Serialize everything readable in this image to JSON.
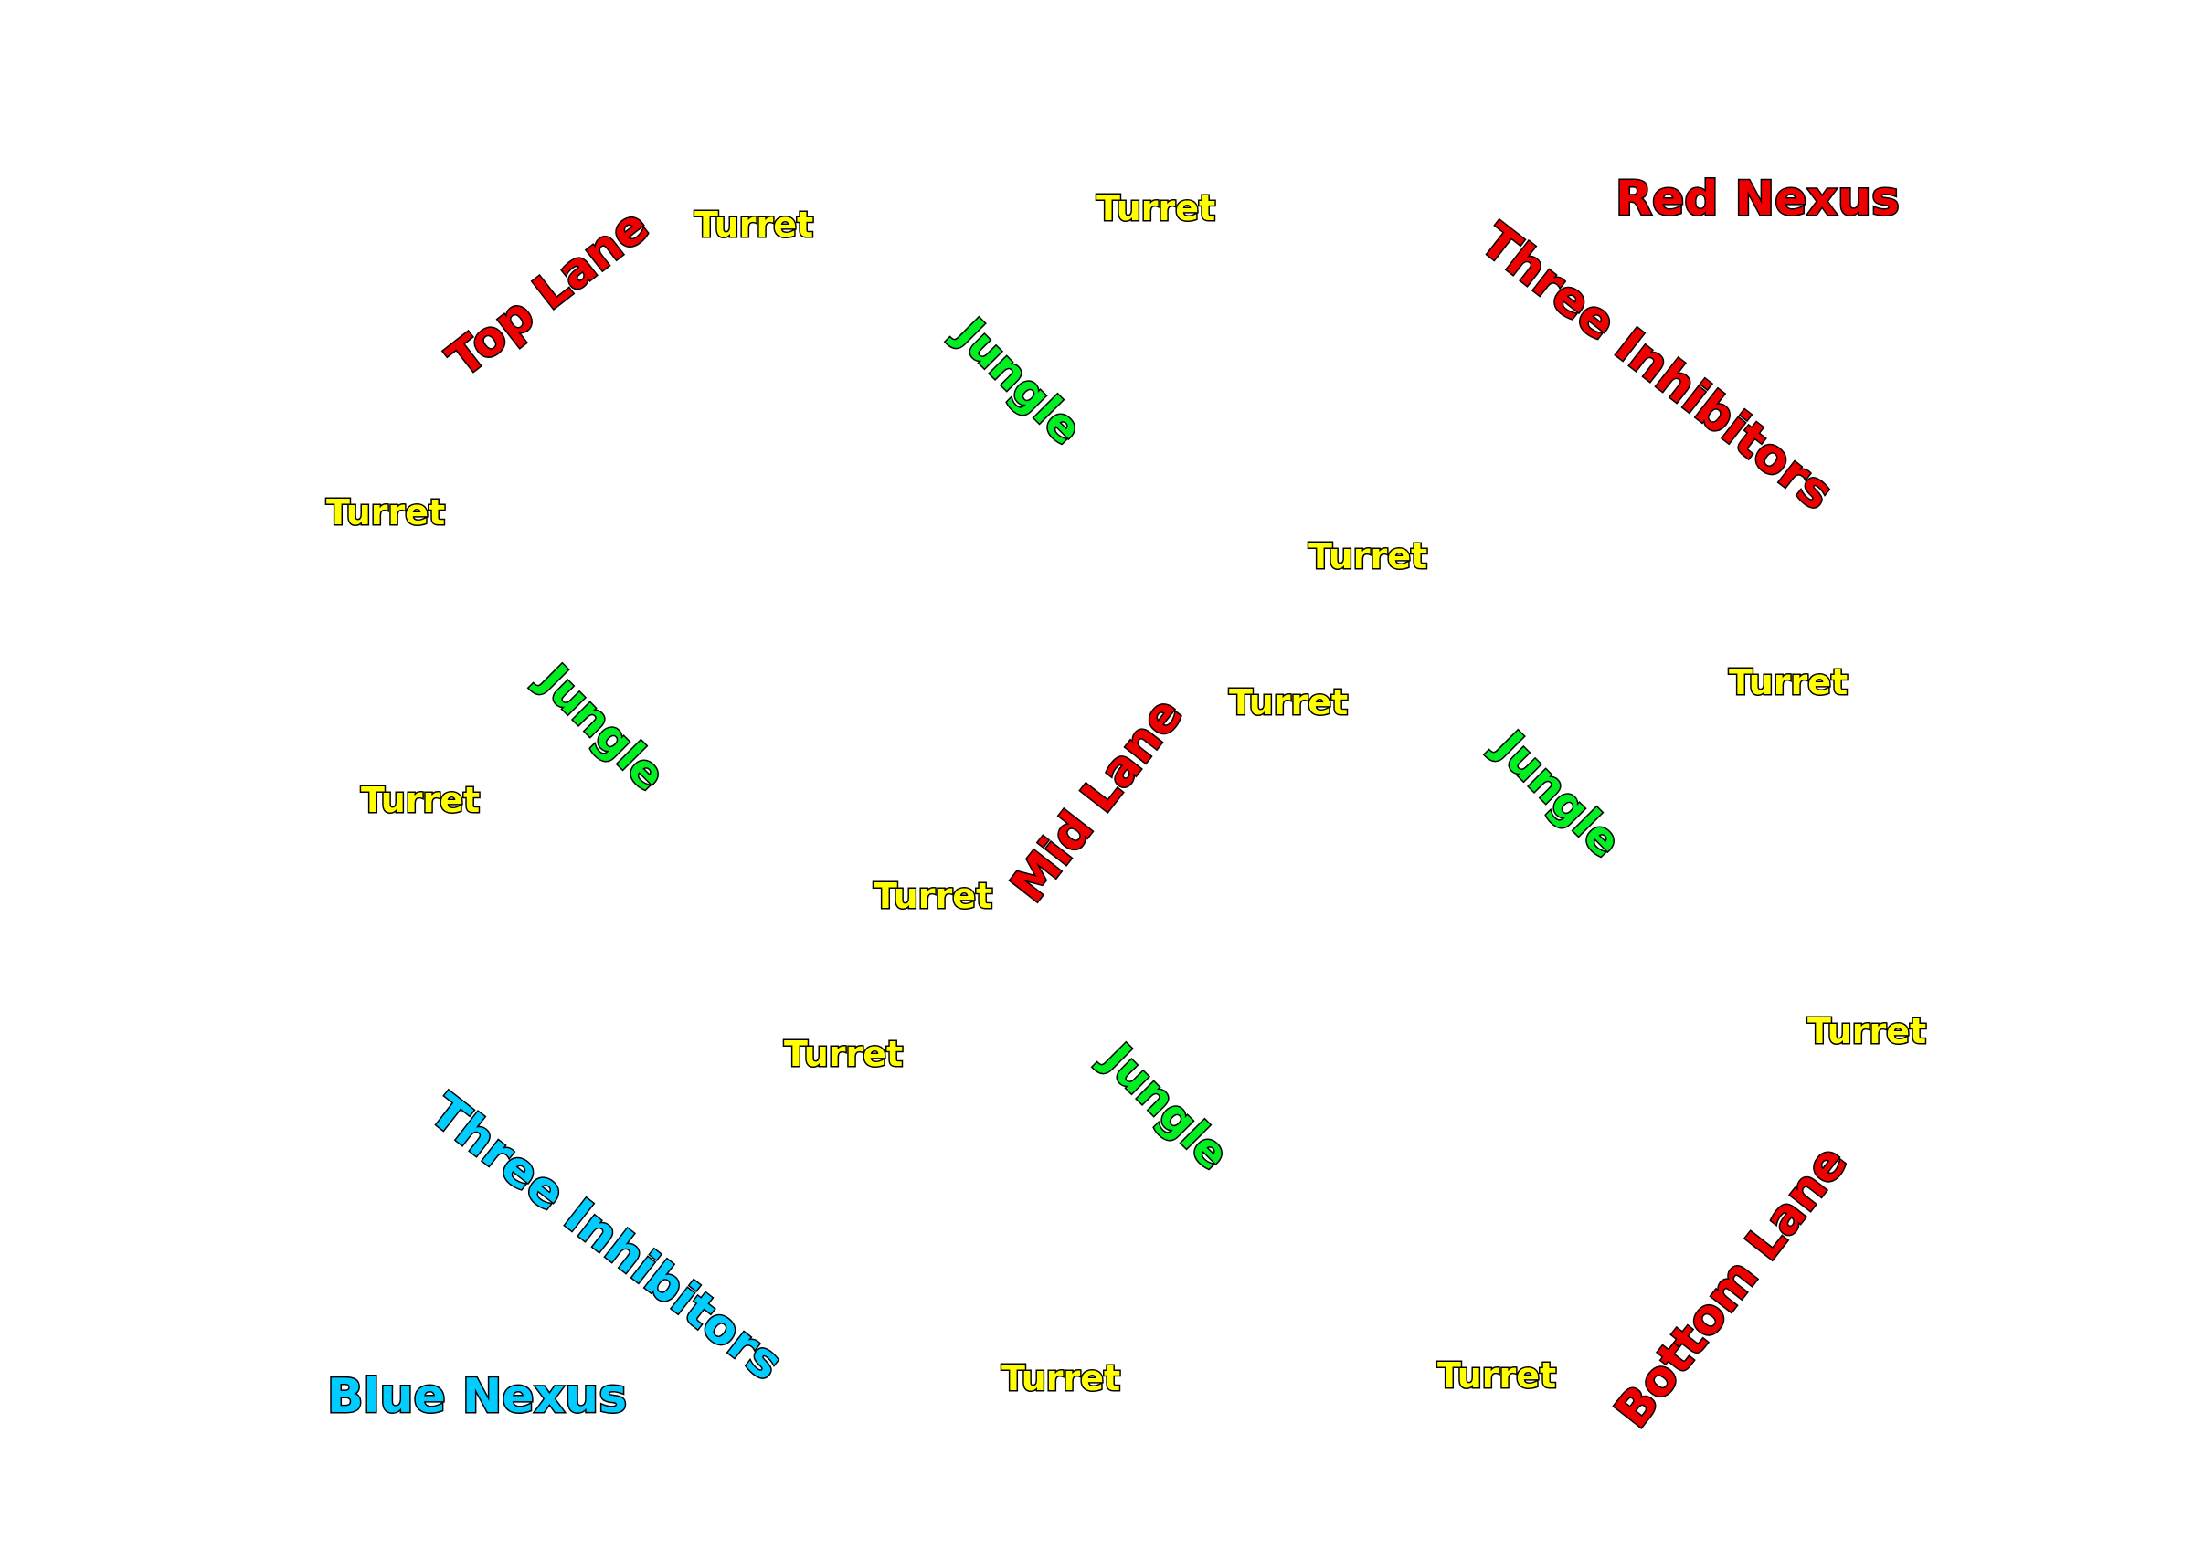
{
  "colors": {
    "turret": "#ffff00",
    "jungle": "#00ee22",
    "red_team": "#ee0000",
    "blue_team": "#00ccff",
    "outline": "#000000",
    "background": "#ffffff"
  },
  "labels": {
    "red_nexus": "Red Nexus",
    "blue_nexus": "Blue Nexus",
    "red_inhibitors": "Three Inhibitors",
    "blue_inhibitors": "Three Inhibitors",
    "top_lane": "Top Lane",
    "mid_lane": "Mid Lane",
    "bottom_lane": "Bottom Lane",
    "jungle": [
      "Jungle",
      "Jungle",
      "Jungle",
      "Jungle"
    ],
    "turret": [
      "Turret",
      "Turret",
      "Turret",
      "Turret",
      "Turret",
      "Turret",
      "Turret",
      "Turret",
      "Turret",
      "Turret",
      "Turret",
      "Turret"
    ]
  }
}
